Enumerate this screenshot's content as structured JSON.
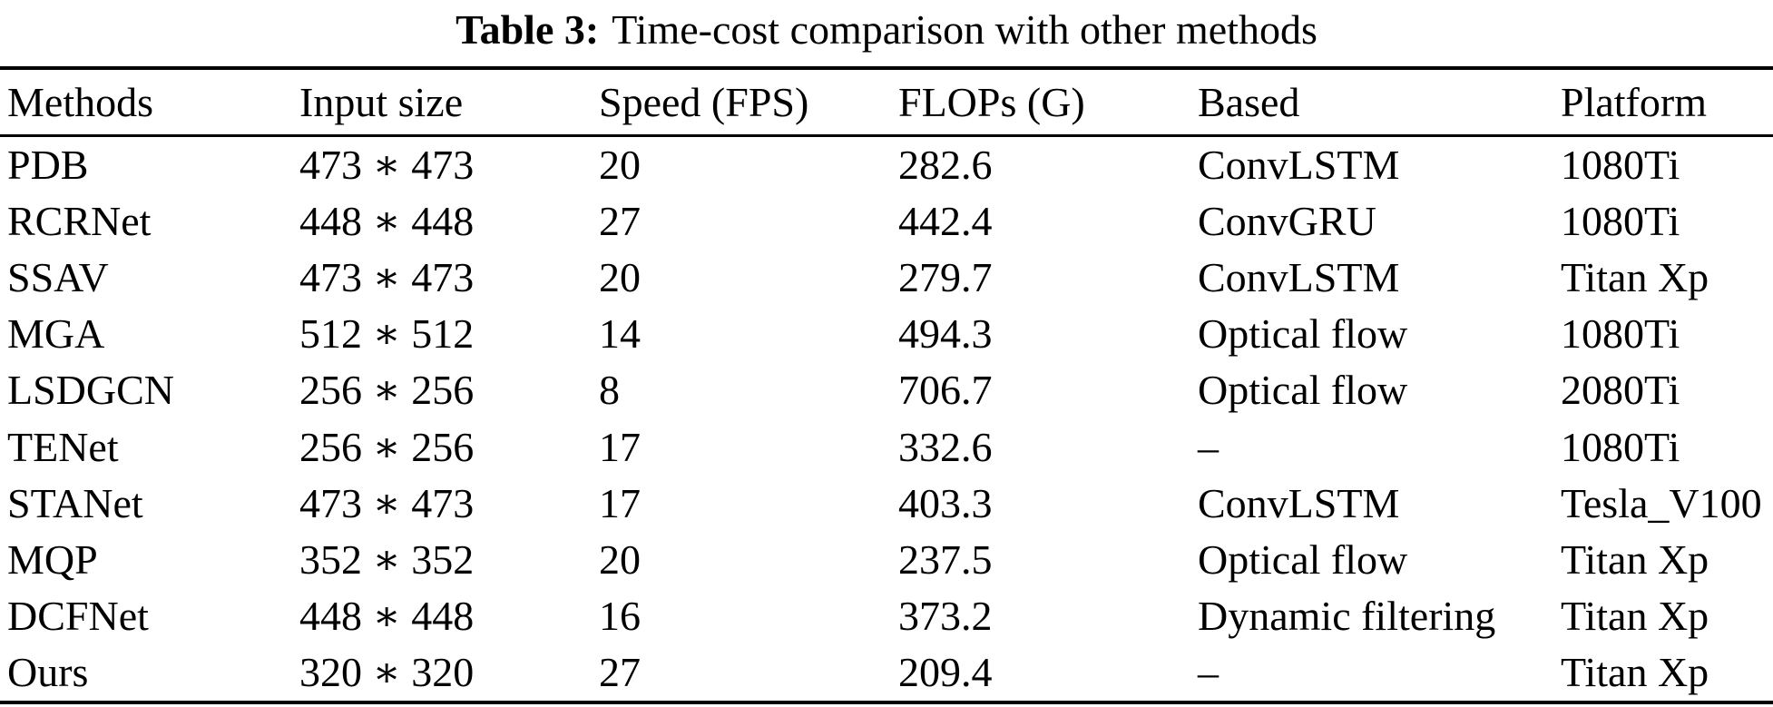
{
  "caption": {
    "label": "Table 3:",
    "text": "Time-cost comparison with other methods"
  },
  "table": {
    "columns": [
      "Methods",
      "Input size",
      "Speed (FPS)",
      "FLOPs (G)",
      "Based",
      "Platform"
    ],
    "rows": [
      [
        "PDB",
        "473 ∗ 473",
        "20",
        "282.6",
        "ConvLSTM",
        "1080Ti"
      ],
      [
        "RCRNet",
        "448 ∗ 448",
        "27",
        "442.4",
        "ConvGRU",
        "1080Ti"
      ],
      [
        "SSAV",
        "473 ∗ 473",
        "20",
        "279.7",
        "ConvLSTM",
        "Titan Xp"
      ],
      [
        "MGA",
        "512 ∗ 512",
        "14",
        "494.3",
        "Optical flow",
        "1080Ti"
      ],
      [
        "LSDGCN",
        "256 ∗ 256",
        "8",
        "706.7",
        "Optical flow",
        "2080Ti"
      ],
      [
        "TENet",
        "256 ∗ 256",
        "17",
        "332.6",
        "–",
        "1080Ti"
      ],
      [
        "STANet",
        "473 ∗ 473",
        "17",
        "403.3",
        "ConvLSTM",
        "Tesla_V100"
      ],
      [
        "MQP",
        "352 ∗ 352",
        "20",
        "237.5",
        "Optical flow",
        "Titan Xp"
      ],
      [
        "DCFNet",
        "448 ∗ 448",
        "16",
        "373.2",
        "Dynamic filtering",
        "Titan Xp"
      ],
      [
        "Ours",
        "320 ∗ 320",
        "27",
        "209.4",
        "–",
        "Titan Xp"
      ]
    ]
  }
}
